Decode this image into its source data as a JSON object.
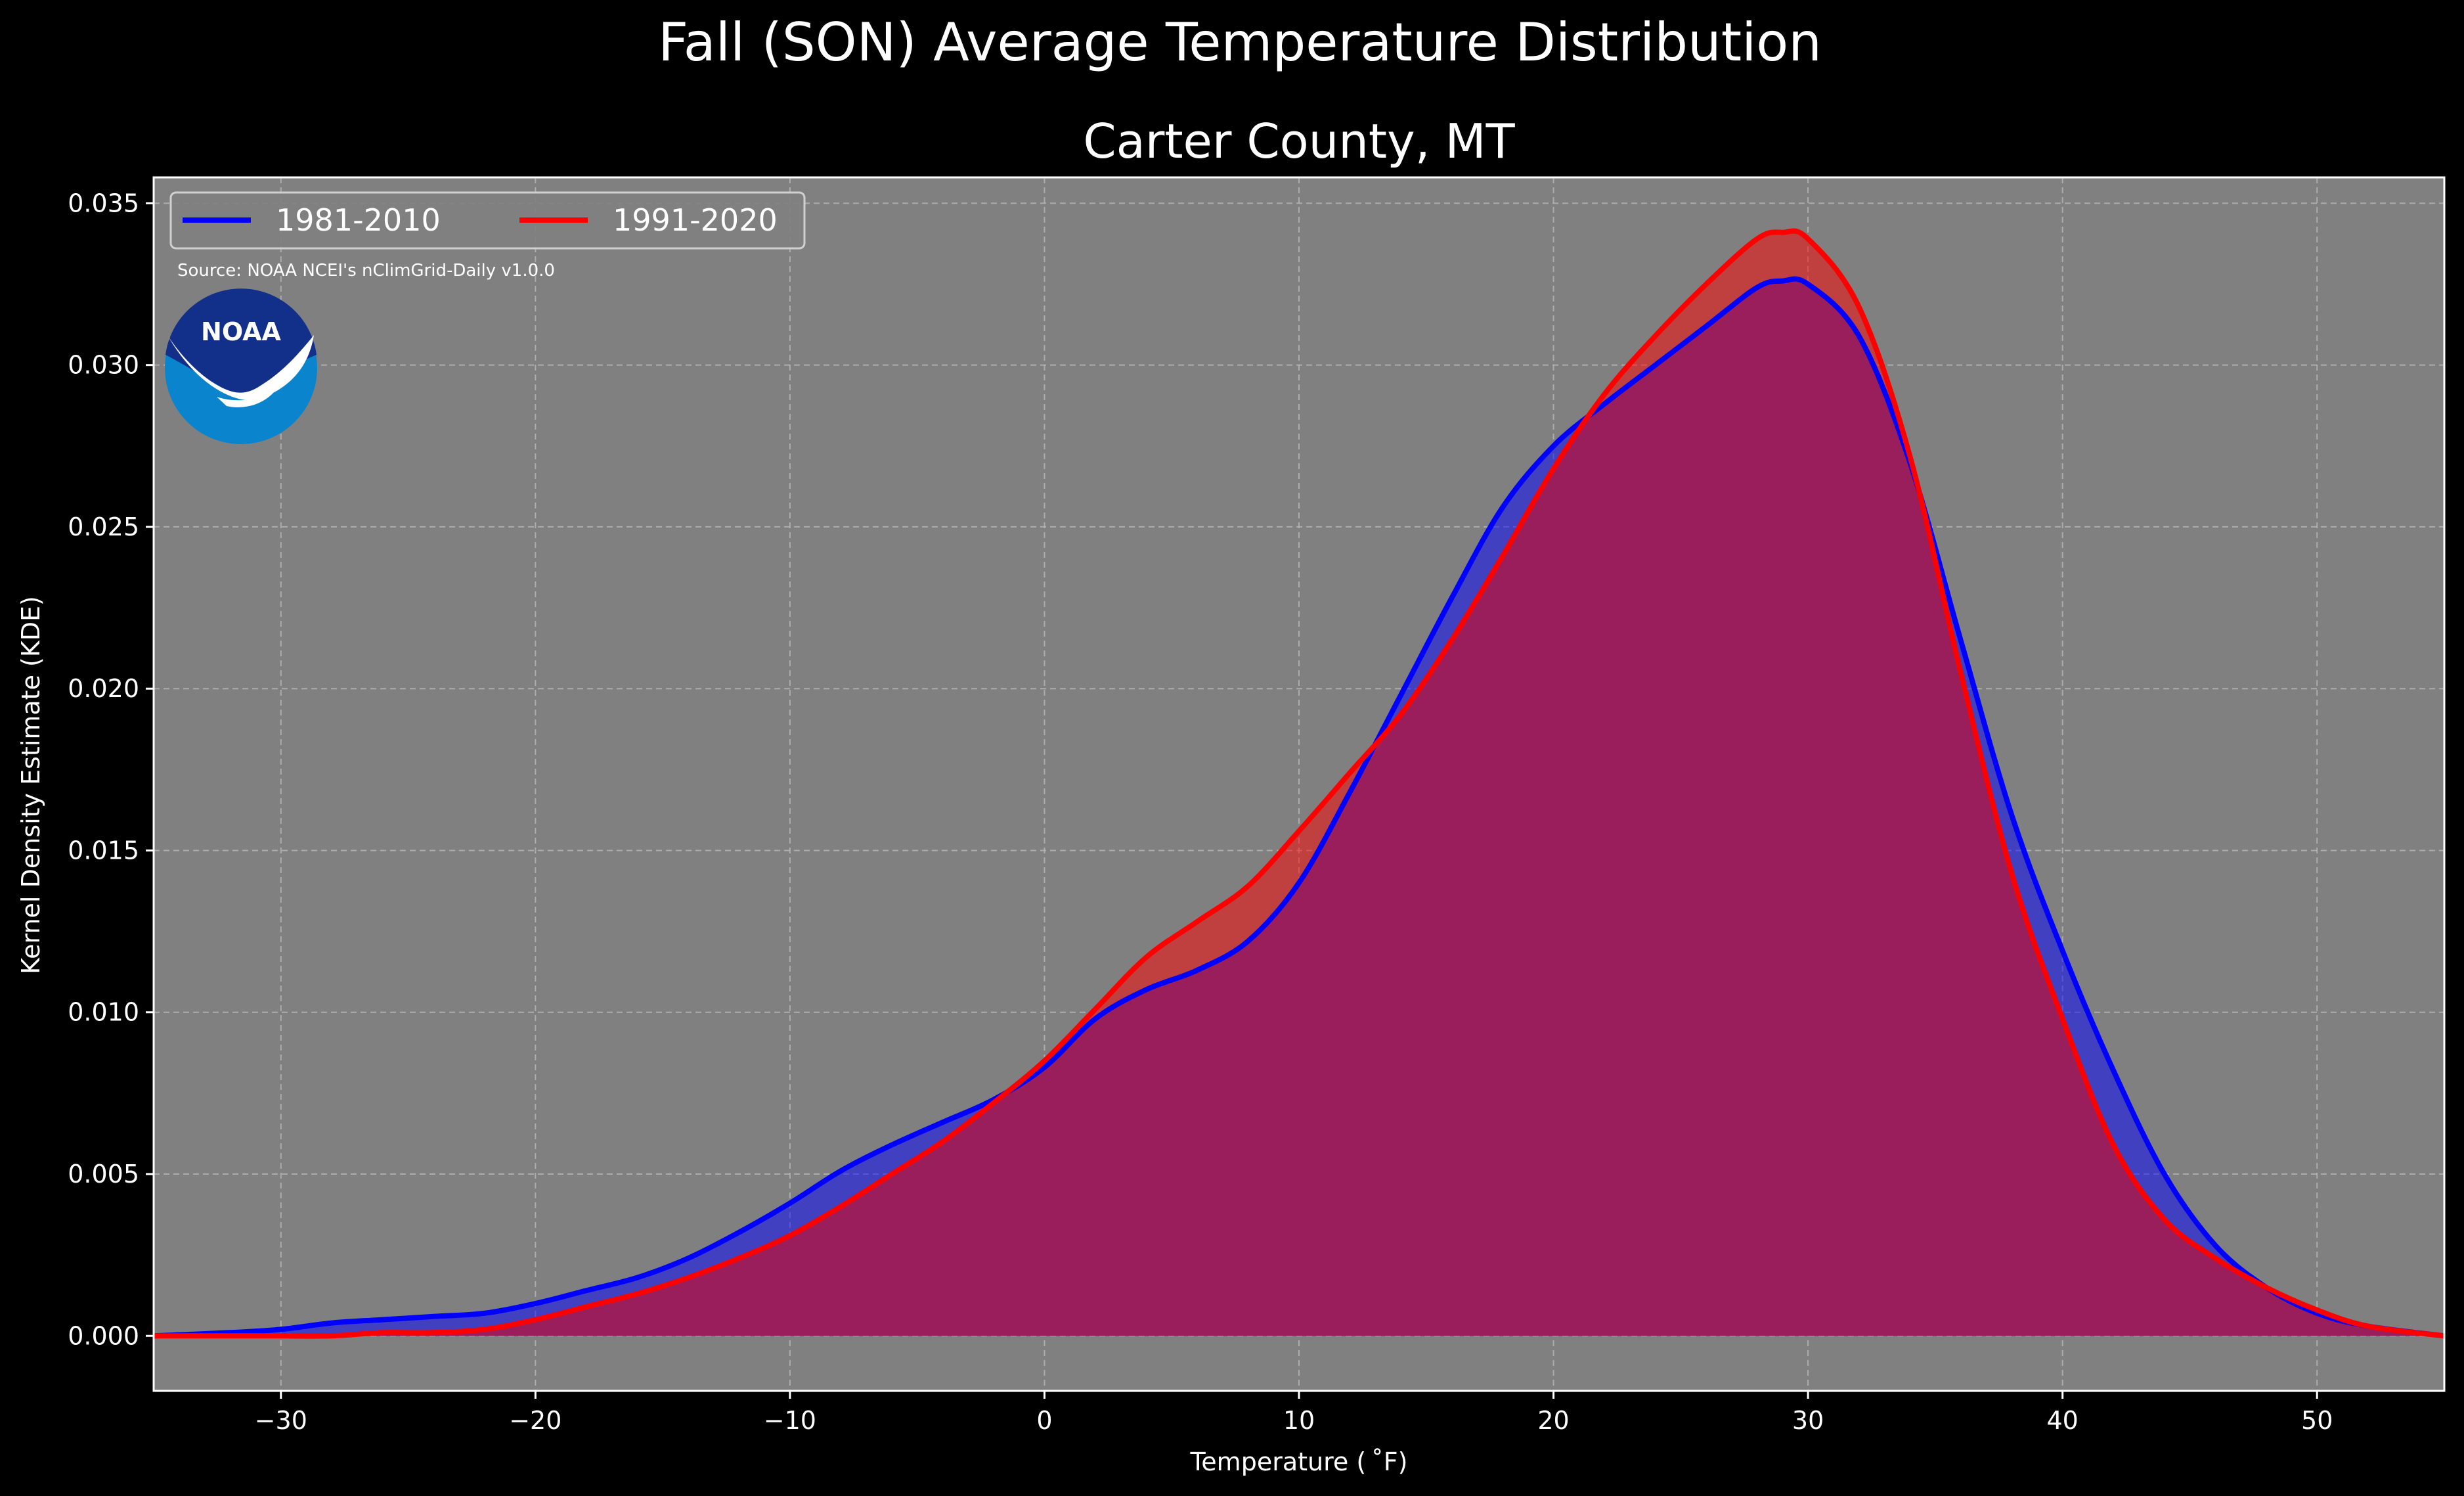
{
  "chart_data": {
    "type": "area",
    "title": "Fall (SON) Average Temperature Distribution",
    "subtitle": "Carter County, MT",
    "xlabel": "Temperature ($^\\circ$F)",
    "xlabel_display": "Temperature ( ˚F)",
    "ylabel": "Kernel Density Estimate (KDE)",
    "xlim": [
      -35,
      55
    ],
    "ylim": [
      -0.0017,
      0.0358
    ],
    "xticks": [
      -30,
      -20,
      -10,
      0,
      10,
      20,
      30,
      40,
      50
    ],
    "xtick_labels": [
      "−30",
      "−20",
      "−10",
      "0",
      "10",
      "20",
      "30",
      "40",
      "50"
    ],
    "yticks": [
      0.0,
      0.005,
      0.01,
      0.015,
      0.02,
      0.025,
      0.03,
      0.035
    ],
    "ytick_labels": [
      "0.000",
      "0.005",
      "0.010",
      "0.015",
      "0.020",
      "0.025",
      "0.030",
      "0.035"
    ],
    "grid": true,
    "legend_position": "top-left",
    "annotation": "Source: NOAA NCEI's nClimGrid-Daily v1.0.0",
    "logo_text": "NOAA",
    "series": [
      {
        "name": "1981-2010",
        "color": "#0000ff",
        "fill_color": "#0000ff",
        "x": [
          -35,
          -32,
          -30,
          -28,
          -26,
          -24,
          -22,
          -20,
          -18,
          -16,
          -14,
          -12,
          -10,
          -8,
          -6,
          -4,
          -2,
          0,
          2,
          4,
          6,
          8,
          10,
          12,
          14,
          16,
          18,
          20,
          22,
          24,
          26,
          28,
          29,
          30,
          32,
          34,
          36,
          38,
          40,
          42,
          44,
          46,
          48,
          50,
          52,
          55
        ],
        "y": [
          0.0,
          0.0001,
          0.0002,
          0.0004,
          0.0005,
          0.0006,
          0.0007,
          0.001,
          0.0014,
          0.0018,
          0.0024,
          0.0032,
          0.0041,
          0.0051,
          0.0059,
          0.0066,
          0.0073,
          0.0083,
          0.0098,
          0.0107,
          0.0113,
          0.0122,
          0.014,
          0.0168,
          0.0198,
          0.0228,
          0.0256,
          0.0275,
          0.0288,
          0.03,
          0.0312,
          0.0324,
          0.0326,
          0.0325,
          0.0309,
          0.027,
          0.0215,
          0.0161,
          0.0119,
          0.0082,
          0.005,
          0.0028,
          0.0015,
          0.0007,
          0.0003,
          0.0
        ]
      },
      {
        "name": "1991-2020",
        "color": "#ff0000",
        "fill_color": "#ff0000",
        "x": [
          -35,
          -32,
          -30,
          -28,
          -26,
          -24,
          -22,
          -20,
          -18,
          -16,
          -14,
          -12,
          -10,
          -8,
          -6,
          -4,
          -2,
          0,
          2,
          4,
          6,
          8,
          10,
          12,
          14,
          16,
          18,
          20,
          22,
          24,
          26,
          28,
          29,
          30,
          32,
          34,
          36,
          38,
          40,
          42,
          44,
          46,
          48,
          50,
          52,
          55
        ],
        "y": [
          0.0,
          0.0,
          0.0,
          0.0,
          0.0001,
          0.0001,
          0.0002,
          0.0005,
          0.0009,
          0.0013,
          0.0018,
          0.0024,
          0.0031,
          0.004,
          0.005,
          0.006,
          0.0072,
          0.0085,
          0.0101,
          0.0117,
          0.0128,
          0.0139,
          0.0156,
          0.0174,
          0.0192,
          0.0215,
          0.0241,
          0.0268,
          0.0291,
          0.0309,
          0.0325,
          0.0339,
          0.0341,
          0.0339,
          0.0318,
          0.0272,
          0.0205,
          0.0143,
          0.0098,
          0.0059,
          0.0036,
          0.0024,
          0.0015,
          0.0008,
          0.0003,
          0.0
        ]
      }
    ],
    "overlap_fill_color": "#9b1e5c"
  }
}
